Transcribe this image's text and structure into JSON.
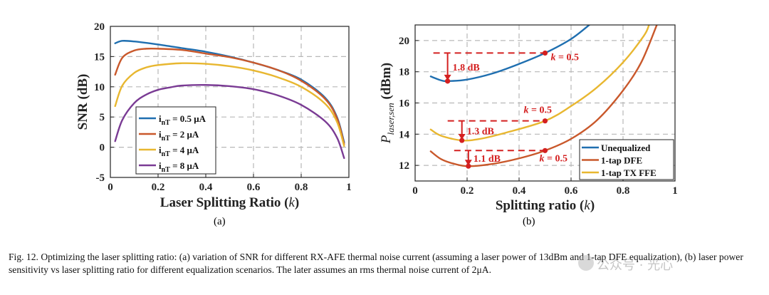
{
  "figure": {
    "label_a": "(a)",
    "label_b": "(b)",
    "caption": "Fig. 12.  Optimizing the laser splitting ratio: (a) variation of SNR for different RX-AFE thermal noise current (assuming a laser power of 13dBm and 1-tap DFE equalization), (b) laser power sensitivity vs laser splitting ratio for different equalization scenarios. The later assumes an rms thermal noise current of 2μA.",
    "watermark": "公众号 · 光心"
  },
  "chart_data": [
    {
      "type": "line",
      "ylabel": "SNR (dB)",
      "xlabel": "Laser Splitting Ratio (k)",
      "xlim": [
        0,
        1
      ],
      "ylim": [
        -5,
        20
      ],
      "xticks": [
        "0",
        "0.2",
        "0.4",
        "0.6",
        "0.8",
        "1"
      ],
      "yticks": [
        "-5",
        "0",
        "5",
        "10",
        "15",
        "20"
      ],
      "grid": true,
      "legend": "center-left",
      "series": [
        {
          "name": "i_nT = 0.5 μA",
          "legend_main": "i",
          "legend_sub": "nT",
          "legend_rest": " = 0.5 μA",
          "color": "#1f6fb0",
          "x": [
            0.02,
            0.05,
            0.1,
            0.2,
            0.3,
            0.4,
            0.5,
            0.6,
            0.7,
            0.8,
            0.9,
            0.95,
            0.98
          ],
          "y": [
            17.2,
            17.6,
            17.5,
            17.0,
            16.4,
            15.8,
            15.0,
            14.0,
            12.8,
            11.2,
            8.2,
            5.0,
            0.8
          ]
        },
        {
          "name": "i_nT = 2 μA",
          "legend_main": "i",
          "legend_sub": "nT",
          "legend_rest": " = 2 μA",
          "color": "#c9582b",
          "x": [
            0.02,
            0.05,
            0.1,
            0.15,
            0.2,
            0.3,
            0.4,
            0.5,
            0.6,
            0.7,
            0.8,
            0.9,
            0.95,
            0.98
          ],
          "y": [
            12.0,
            14.8,
            16.0,
            16.3,
            16.3,
            16.1,
            15.5,
            14.9,
            14.0,
            12.8,
            11.0,
            8.0,
            4.8,
            0.5
          ]
        },
        {
          "name": "i_nT = 4 μA",
          "legend_main": "i",
          "legend_sub": "nT",
          "legend_rest": " = 4 μA",
          "color": "#e8b730",
          "x": [
            0.02,
            0.05,
            0.1,
            0.15,
            0.2,
            0.3,
            0.4,
            0.5,
            0.6,
            0.7,
            0.8,
            0.9,
            0.95,
            0.98
          ],
          "y": [
            6.8,
            10.2,
            12.3,
            13.2,
            13.6,
            13.9,
            13.8,
            13.4,
            12.7,
            11.6,
            10.0,
            7.2,
            4.2,
            0.2
          ]
        },
        {
          "name": "i_nT = 8 μA",
          "legend_main": "i",
          "legend_sub": "nT",
          "legend_rest": " = 8 μA",
          "color": "#7a3b94",
          "x": [
            0.02,
            0.05,
            0.1,
            0.15,
            0.2,
            0.25,
            0.3,
            0.4,
            0.5,
            0.6,
            0.7,
            0.8,
            0.9,
            0.95,
            0.98
          ],
          "y": [
            1.0,
            4.5,
            7.3,
            8.7,
            9.5,
            9.9,
            10.2,
            10.3,
            10.1,
            9.6,
            8.6,
            7.0,
            4.3,
            1.6,
            -1.8
          ]
        }
      ]
    },
    {
      "type": "line",
      "ylabel_main": "P",
      "ylabel_sub": "laser,sen",
      "ylabel_unit": " (dBm)",
      "xlabel": "Splitting ratio (k)",
      "xlim": [
        0,
        1
      ],
      "ylim": [
        11,
        21
      ],
      "xticks": [
        "0",
        "0.2",
        "0.4",
        "0.6",
        "0.8",
        "1"
      ],
      "yticks": [
        "12",
        "14",
        "16",
        "18",
        "20"
      ],
      "grid": true,
      "legend": "bottom-right",
      "series": [
        {
          "name": "Unequalized",
          "color": "#1f6fb0",
          "x": [
            0.06,
            0.1,
            0.125,
            0.2,
            0.3,
            0.4,
            0.5,
            0.6,
            0.67
          ],
          "y": [
            17.7,
            17.45,
            17.4,
            17.5,
            17.9,
            18.5,
            19.2,
            20.1,
            21.0
          ]
        },
        {
          "name": "1-tap DFE",
          "color": "#c9582b",
          "x": [
            0.06,
            0.1,
            0.15,
            0.205,
            0.3,
            0.4,
            0.5,
            0.6,
            0.7,
            0.8,
            0.87,
            0.93
          ],
          "y": [
            12.9,
            12.4,
            12.1,
            11.95,
            12.1,
            12.45,
            12.95,
            13.7,
            14.9,
            16.8,
            18.6,
            21.0
          ]
        },
        {
          "name": "1-tap TX FFE",
          "color": "#e8b730",
          "x": [
            0.06,
            0.1,
            0.18,
            0.25,
            0.35,
            0.5,
            0.6,
            0.7,
            0.8,
            0.88,
            0.9
          ],
          "y": [
            14.3,
            13.9,
            13.6,
            13.7,
            14.1,
            14.85,
            15.8,
            17.0,
            18.6,
            20.3,
            21.0
          ]
        }
      ],
      "annotations": [
        {
          "text": "1.8 dB",
          "x_from": 0.125,
          "x_to": 0.5,
          "y_top": 19.2,
          "y_bottom": 17.4
        },
        {
          "text": "1.3 dB",
          "x_from": 0.18,
          "x_to": 0.5,
          "y_top": 14.85,
          "y_bottom": 13.6
        },
        {
          "text": "1.1 dB",
          "x_from": 0.205,
          "x_to": 0.5,
          "y_top": 12.95,
          "y_bottom": 11.95
        }
      ],
      "k_labels": [
        {
          "text": "k = 0.5",
          "x": 0.5,
          "y": 19.2
        },
        {
          "text": "k = 0.5",
          "x": 0.5,
          "y": 14.85
        },
        {
          "text": "k = 0.5",
          "x": 0.5,
          "y": 12.95
        }
      ],
      "annotation_color": "#d42020"
    }
  ]
}
